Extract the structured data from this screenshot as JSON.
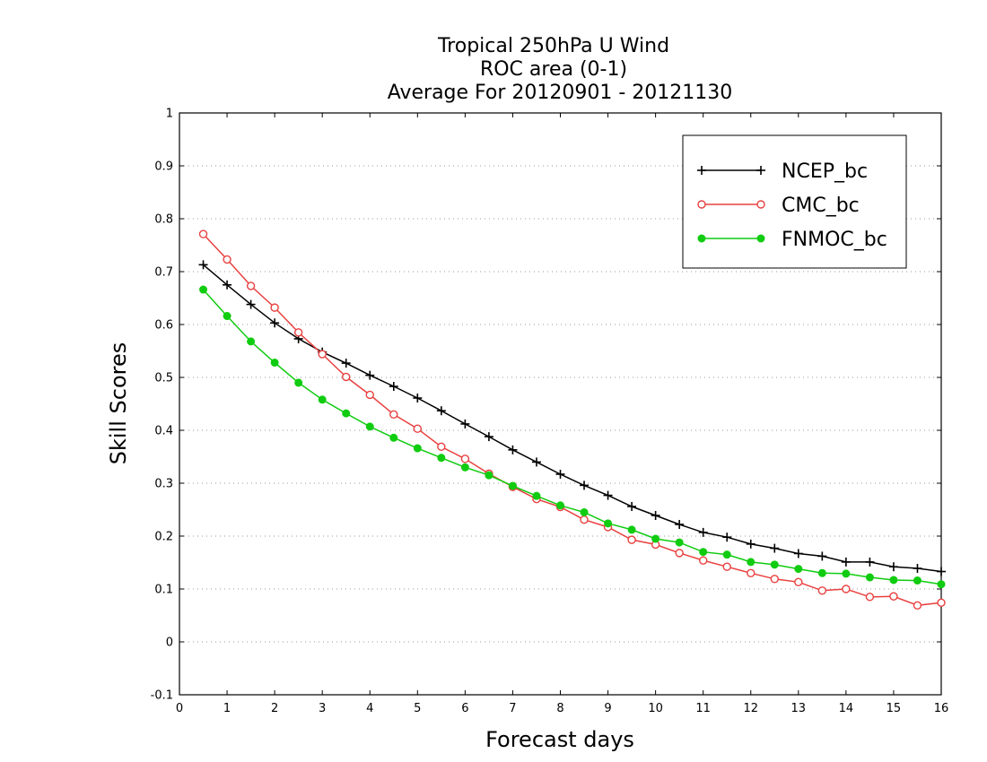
{
  "chart_data": {
    "type": "line",
    "title_lines": [
      "Tropical 250hPa U Wind",
      "ROC area (0-1)",
      "Average For 20120901 - 20121130"
    ],
    "xlabel": "Forecast days",
    "ylabel": "Skill Scores",
    "xlim": [
      0,
      16
    ],
    "ylim": [
      -0.1,
      1
    ],
    "xticks": [
      0,
      1,
      2,
      3,
      4,
      5,
      6,
      7,
      8,
      9,
      10,
      11,
      12,
      13,
      14,
      15,
      16
    ],
    "yticks": [
      -0.1,
      0,
      0.1,
      0.2,
      0.3,
      0.4,
      0.5,
      0.6,
      0.7,
      0.8,
      0.9,
      1
    ],
    "ytick_labels": [
      "-0.1",
      "0",
      "0.1",
      "0.2",
      "0.3",
      "0.4",
      "0.5",
      "0.6",
      "0.7",
      "0.8",
      "0.9",
      "1"
    ],
    "grid": "horizontal dotted",
    "legend_position": "top-right",
    "x": [
      0.5,
      1,
      1.5,
      2,
      2.5,
      3,
      3.5,
      4,
      4.5,
      5,
      5.5,
      6,
      6.5,
      7,
      7.5,
      8,
      8.5,
      9,
      9.5,
      10,
      10.5,
      11,
      11.5,
      12,
      12.5,
      13,
      13.5,
      14,
      14.5,
      15,
      15.5,
      16
    ],
    "series": [
      {
        "name": "NCEP_bc",
        "color": "#000000",
        "marker": "plus",
        "values": [
          0.713,
          0.675,
          0.638,
          0.603,
          0.573,
          0.548,
          0.527,
          0.504,
          0.483,
          0.461,
          0.437,
          0.412,
          0.388,
          0.363,
          0.34,
          0.317,
          0.296,
          0.277,
          0.256,
          0.239,
          0.222,
          0.207,
          0.198,
          0.185,
          0.177,
          0.167,
          0.162,
          0.151,
          0.151,
          0.142,
          0.139,
          0.133
        ]
      },
      {
        "name": "CMC_bc",
        "color": "#e8403f",
        "marker": "open-circle",
        "values": [
          0.771,
          0.723,
          0.673,
          0.632,
          0.585,
          0.544,
          0.501,
          0.467,
          0.43,
          0.403,
          0.369,
          0.346,
          0.318,
          0.293,
          0.27,
          0.255,
          0.231,
          0.217,
          0.193,
          0.184,
          0.168,
          0.154,
          0.142,
          0.13,
          0.119,
          0.113,
          0.097,
          0.1,
          0.085,
          0.086,
          0.069,
          0.074
        ]
      },
      {
        "name": "FNMOC_bc",
        "color": "#10cc10",
        "marker": "filled-circle",
        "values": [
          0.666,
          0.616,
          0.568,
          0.528,
          0.49,
          0.458,
          0.432,
          0.407,
          0.386,
          0.366,
          0.348,
          0.33,
          0.315,
          0.295,
          0.276,
          0.258,
          0.245,
          0.224,
          0.212,
          0.195,
          0.188,
          0.17,
          0.165,
          0.151,
          0.146,
          0.138,
          0.13,
          0.129,
          0.122,
          0.117,
          0.116,
          0.109
        ]
      }
    ]
  }
}
